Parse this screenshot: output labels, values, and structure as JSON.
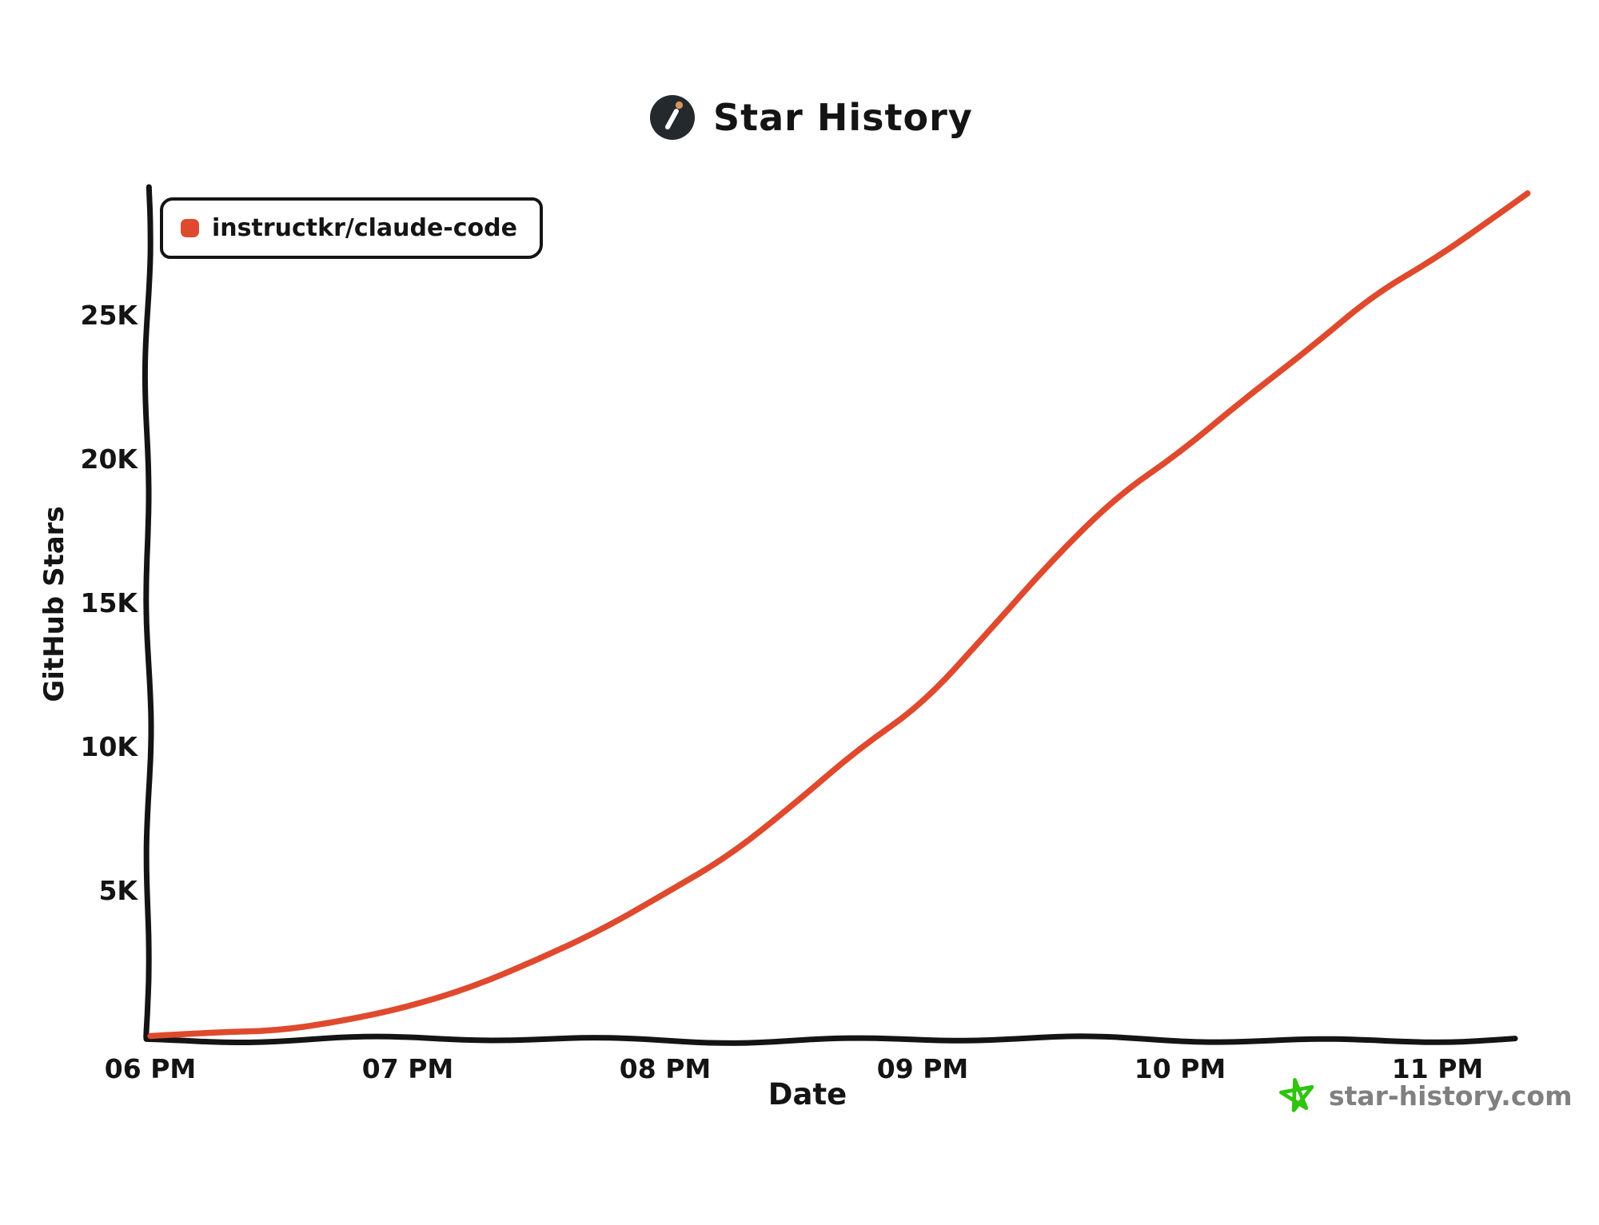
{
  "title": {
    "text": "Star History"
  },
  "legend": {
    "series_label": "instructkr/claude-code"
  },
  "axes": {
    "y_label": "GitHub Stars",
    "x_label": "Date"
  },
  "footer": {
    "site": "star-history.com"
  },
  "colors": {
    "line": "#DF4A2E",
    "axis": "#141414",
    "text": "#141414",
    "footer_text": "#808080",
    "footer_star": "#2FC40F",
    "logo_bg": "#24292E",
    "logo_slash": "#FFFFFF",
    "logo_dot": "#D6955B",
    "legend_marker": "#DF4A2E"
  },
  "chart_data": {
    "type": "line",
    "title": "Star History",
    "xlabel": "Date",
    "ylabel": "GitHub Stars",
    "legend_position": "top-left",
    "grid": false,
    "x_ticks": [
      {
        "label": "06 PM",
        "hour": 0
      },
      {
        "label": "07 PM",
        "hour": 1
      },
      {
        "label": "08 PM",
        "hour": 2
      },
      {
        "label": "09 PM",
        "hour": 3
      },
      {
        "label": "10 PM",
        "hour": 4
      },
      {
        "label": "11 PM",
        "hour": 5
      }
    ],
    "y_ticks": [
      {
        "label": "5K",
        "value": 5000
      },
      {
        "label": "10K",
        "value": 10000
      },
      {
        "label": "15K",
        "value": 15000
      },
      {
        "label": "20K",
        "value": 20000
      },
      {
        "label": "25K",
        "value": 25000
      }
    ],
    "xlim_minutes": [
      0,
      321
    ],
    "ylim": [
      0,
      29500
    ],
    "series": [
      {
        "name": "instructkr/claude-code",
        "color": "#DF4A2E",
        "points_minutes_stars": [
          [
            0,
            30
          ],
          [
            15,
            80
          ],
          [
            30,
            200
          ],
          [
            45,
            500
          ],
          [
            60,
            1000
          ],
          [
            75,
            1700
          ],
          [
            90,
            2600
          ],
          [
            105,
            3700
          ],
          [
            120,
            4900
          ],
          [
            135,
            6300
          ],
          [
            150,
            8000
          ],
          [
            165,
            10000
          ],
          [
            180,
            11500
          ],
          [
            195,
            14000
          ],
          [
            210,
            16500
          ],
          [
            225,
            18700
          ],
          [
            240,
            20300
          ],
          [
            255,
            22100
          ],
          [
            270,
            23900
          ],
          [
            285,
            25700
          ],
          [
            300,
            27100
          ],
          [
            315,
            28600
          ],
          [
            321,
            29300
          ]
        ]
      }
    ]
  }
}
